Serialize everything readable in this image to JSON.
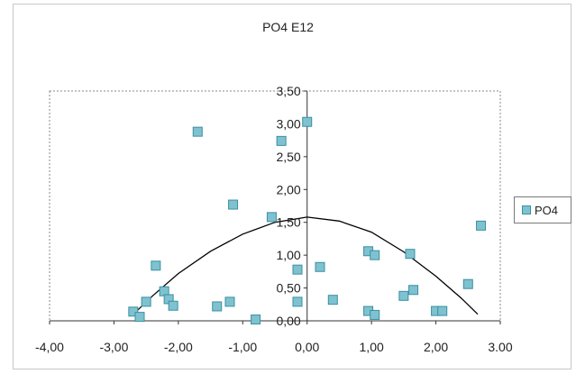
{
  "chart_data": {
    "type": "scatter",
    "title": "PO4  E12",
    "xlabel": "",
    "ylabel": "",
    "xlim": [
      -4.0,
      3.0
    ],
    "ylim": [
      0.0,
      3.5
    ],
    "x_ticks": [
      "-4,00",
      "-3,00",
      "-2,00",
      "-1,00",
      "0,00",
      "1,00",
      "2,00",
      "3.00"
    ],
    "y_ticks": [
      "0,00",
      "0,50",
      "1,00",
      "1,50",
      "2,00",
      "2,50",
      "3,00",
      "3,50"
    ],
    "legend_position": "right",
    "series": [
      {
        "name": "PO4",
        "color": "#7fc2cf",
        "points": [
          [
            -2.7,
            0.14
          ],
          [
            -2.6,
            0.06
          ],
          [
            -2.5,
            0.29
          ],
          [
            -2.35,
            0.84
          ],
          [
            -2.22,
            0.45
          ],
          [
            -2.15,
            0.33
          ],
          [
            -2.08,
            0.23
          ],
          [
            -1.7,
            2.88
          ],
          [
            -1.4,
            0.22
          ],
          [
            -1.2,
            0.29
          ],
          [
            -1.15,
            1.77
          ],
          [
            -0.8,
            0.02
          ],
          [
            -0.4,
            2.74
          ],
          [
            -0.55,
            1.58
          ],
          [
            -0.15,
            0.78
          ],
          [
            -0.15,
            0.29
          ],
          [
            0.0,
            3.03
          ],
          [
            0.2,
            0.82
          ],
          [
            0.4,
            0.32
          ],
          [
            0.95,
            0.15
          ],
          [
            1.05,
            0.09
          ],
          [
            0.95,
            1.06
          ],
          [
            1.05,
            1.0
          ],
          [
            1.5,
            0.38
          ],
          [
            1.6,
            1.02
          ],
          [
            1.65,
            0.47
          ],
          [
            2.0,
            0.15
          ],
          [
            2.1,
            0.15
          ],
          [
            2.5,
            0.56
          ],
          [
            2.7,
            1.45
          ]
        ]
      }
    ],
    "trendline": {
      "type": "polynomial",
      "color": "#000000",
      "points": [
        [
          -2.7,
          0.1
        ],
        [
          -2.4,
          0.38
        ],
        [
          -2.0,
          0.72
        ],
        [
          -1.5,
          1.06
        ],
        [
          -1.0,
          1.32
        ],
        [
          -0.5,
          1.5
        ],
        [
          0.0,
          1.58
        ],
        [
          0.5,
          1.52
        ],
        [
          1.0,
          1.35
        ],
        [
          1.5,
          1.05
        ],
        [
          2.0,
          0.68
        ],
        [
          2.4,
          0.34
        ],
        [
          2.65,
          0.1
        ]
      ]
    }
  }
}
